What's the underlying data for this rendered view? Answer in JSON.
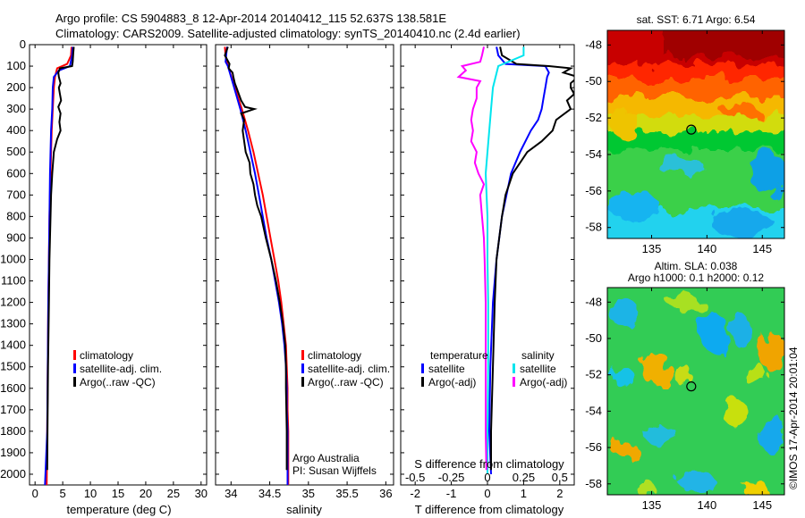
{
  "figure": {
    "title_line1": "Argo profile: CS 5904883_8 12-Apr-2014 20140412_115 52.637S 138.581E",
    "title_line2": "Climatology: CARS2009. Satellite-adjusted climatology: synTS_20140410.nc (2.4d earlier)",
    "side_stamp": "©IMOS 17-Apr-2014 20:01:04",
    "credit_line1": "Argo Australia",
    "credit_line2": "PI: Susan Wijffels"
  },
  "colors": {
    "climatology": "#ff0000",
    "satellite": "#0000ff",
    "argo": "#000000",
    "salinity_satellite": "#00e5ee",
    "salinity_argo": "#ff00ff"
  },
  "chart_data": [
    {
      "type": "line",
      "panel": "temperature",
      "xlabel": "temperature (deg C)",
      "ylabel": "",
      "xlim": [
        -1,
        31
      ],
      "ylim": [
        2050,
        0
      ],
      "xticks": [
        0,
        5,
        10,
        15,
        20,
        25,
        30
      ],
      "yticks": [
        0,
        100,
        200,
        300,
        400,
        500,
        600,
        700,
        800,
        900,
        1000,
        1100,
        1200,
        1300,
        1400,
        1500,
        1600,
        1700,
        1800,
        1900,
        2000
      ],
      "ytick_labels": [
        "0",
        "100",
        "200",
        "300",
        "400",
        "500",
        "600",
        "700",
        "800",
        "900",
        "1000",
        "1100",
        "1200",
        "1300",
        "1400",
        "1500",
        "1600",
        "1700",
        "1800",
        "1900",
        "2000"
      ],
      "legend": [
        "climatology",
        "satellite-adj. clim.",
        "Argo(..raw -QC)"
      ],
      "legend_position": "lower-center",
      "series": [
        {
          "name": "climatology",
          "color": "#ff0000",
          "y": [
            10,
            50,
            90,
            110,
            150,
            200,
            300,
            400,
            500,
            600,
            800,
            1000,
            1200,
            1500,
            1800,
            2050
          ],
          "x": [
            6.6,
            6.5,
            5.8,
            4.0,
            3.6,
            3.4,
            3.2,
            3.0,
            2.9,
            2.8,
            2.6,
            2.5,
            2.4,
            2.3,
            2.2,
            2.1
          ]
        },
        {
          "name": "satellite-adj. clim.",
          "color": "#0000ff",
          "y": [
            10,
            50,
            100,
            120,
            150,
            200,
            300,
            400,
            500,
            600,
            800,
            1000,
            1200,
            1500,
            1800,
            2050
          ],
          "x": [
            6.8,
            6.7,
            6.3,
            4.3,
            3.4,
            3.2,
            3.1,
            2.9,
            2.8,
            2.7,
            2.6,
            2.5,
            2.4,
            2.3,
            2.2,
            1.8
          ]
        },
        {
          "name": "Argo(..raw -QC)",
          "color": "#000000",
          "y": [
            10,
            40,
            80,
            100,
            110,
            130,
            150,
            180,
            200,
            230,
            260,
            290,
            320,
            360,
            400,
            440,
            500,
            600,
            700,
            800,
            1000,
            1200,
            1500,
            1800,
            1980
          ],
          "x": [
            7.0,
            6.9,
            6.8,
            6.7,
            4.5,
            4.2,
            4.3,
            4.6,
            4.3,
            4.5,
            4.7,
            4.2,
            4.6,
            4.4,
            4.6,
            4.0,
            3.4,
            3.1,
            2.9,
            2.8,
            2.6,
            2.5,
            2.35,
            2.25,
            2.2
          ]
        }
      ]
    },
    {
      "type": "line",
      "panel": "salinity",
      "xlabel": "salinity",
      "ylabel": "",
      "xlim": [
        33.8,
        36.1
      ],
      "ylim": [
        2050,
        0
      ],
      "xticks": [
        34,
        34.5,
        35,
        35.5,
        36
      ],
      "xtick_labels": [
        "34",
        "34.5",
        "35",
        "35.5",
        "36"
      ],
      "legend": [
        "climatology",
        "satellite-adj. clim.",
        "Argo(..raw -QC)"
      ],
      "legend_position": "lower-right",
      "series": [
        {
          "name": "climatology",
          "color": "#ff0000",
          "y": [
            10,
            50,
            100,
            200,
            300,
            400,
            500,
            600,
            700,
            800,
            900,
            1000,
            1100,
            1200,
            1300,
            1400,
            1500,
            1600,
            1700,
            1800,
            2050
          ],
          "x": [
            33.92,
            33.93,
            33.96,
            34.05,
            34.14,
            34.22,
            34.29,
            34.35,
            34.41,
            34.46,
            34.51,
            34.56,
            34.61,
            34.65,
            34.68,
            34.71,
            34.72,
            34.73,
            34.73,
            34.74,
            34.74
          ]
        },
        {
          "name": "satellite-adj. clim.",
          "color": "#0000ff",
          "y": [
            10,
            40,
            80,
            100,
            200,
            300,
            400,
            500,
            600,
            700,
            800,
            900,
            1000,
            1100,
            1200,
            1300,
            1400,
            1500,
            1600,
            1700,
            1800,
            2050
          ],
          "x": [
            33.95,
            33.94,
            33.93,
            33.96,
            34.04,
            34.12,
            34.19,
            34.25,
            34.31,
            34.36,
            34.41,
            34.46,
            34.52,
            34.57,
            34.62,
            34.66,
            34.69,
            34.71,
            34.72,
            34.72,
            34.73,
            34.73
          ]
        },
        {
          "name": "Argo(..raw -QC)",
          "color": "#000000",
          "y": [
            10,
            50,
            90,
            110,
            130,
            150,
            180,
            200,
            230,
            260,
            290,
            300,
            320,
            350,
            400,
            450,
            500,
            550,
            600,
            650,
            700,
            750,
            800,
            850,
            900,
            1000,
            1100,
            1200,
            1300,
            1400,
            1500,
            1600,
            1800,
            1980
          ],
          "x": [
            33.96,
            33.92,
            33.98,
            33.97,
            34.02,
            34.03,
            34.05,
            34.07,
            34.1,
            34.13,
            34.18,
            34.3,
            34.13,
            34.17,
            34.15,
            34.17,
            34.19,
            34.24,
            34.25,
            34.29,
            34.31,
            34.34,
            34.39,
            34.42,
            34.45,
            34.52,
            34.58,
            34.63,
            34.67,
            34.7,
            34.71,
            34.71,
            34.72,
            34.72
          ]
        }
      ]
    },
    {
      "type": "line",
      "panel": "difference",
      "xlabel": "T difference from climatology",
      "xlabel_top": "S difference from climatology",
      "xlim": [
        -2.4,
        2.4
      ],
      "ylim": [
        2050,
        0
      ],
      "xticks": [
        -2,
        -1,
        0,
        1,
        2
      ],
      "xtick_labels": [
        "-2",
        "-1",
        "0",
        "1",
        "2"
      ],
      "s_tick_labels": [
        "-0.5",
        "-0.25",
        "0",
        "0.25",
        "0.5"
      ],
      "legend_temperature_title": "temperature",
      "legend_salinity_title": "salinity",
      "legend": [
        "satellite",
        "Argo(-adj)",
        "satellite",
        "Argo(-adj)"
      ],
      "legend_position": "lower-center",
      "series": [
        {
          "name": "satellite",
          "color": "#0000ff",
          "y": [
            10,
            50,
            90,
            100,
            130,
            150,
            200,
            250,
            300,
            350,
            400,
            500,
            600,
            800,
            1000,
            1200,
            1500,
            1800,
            2000
          ],
          "x": [
            0.25,
            0.3,
            0.5,
            1.6,
            1.7,
            1.65,
            1.6,
            1.55,
            1.5,
            1.4,
            1.2,
            0.9,
            0.65,
            0.4,
            0.25,
            0.15,
            0.08,
            0.05,
            0.1
          ]
        },
        {
          "name": "Argo(-adj)",
          "color": "#000000",
          "y": [
            10,
            50,
            90,
            100,
            110,
            130,
            150,
            180,
            200,
            230,
            260,
            300,
            350,
            400,
            450,
            500,
            550,
            600,
            700,
            800,
            1000,
            1200,
            1500,
            1800,
            1980
          ],
          "x": [
            0.35,
            0.4,
            0.8,
            1.7,
            2.3,
            2.1,
            2.5,
            2.3,
            2.3,
            2.4,
            2.2,
            2.3,
            1.9,
            1.8,
            1.5,
            1.1,
            0.9,
            0.7,
            0.5,
            0.4,
            0.25,
            0.2,
            0.15,
            0.1,
            0.1
          ]
        },
        {
          "name": "satellite",
          "color": "#00e5ee",
          "y": [
            10,
            50,
            100,
            200,
            300,
            400,
            500,
            600,
            800,
            1000,
            1200,
            1500,
            1800,
            2000
          ],
          "x": [
            1.0,
            1.0,
            0.3,
            0.15,
            0.1,
            0.05,
            0.0,
            -0.05,
            0.0,
            0.0,
            0.02,
            0.02,
            0.0,
            0.0
          ]
        },
        {
          "name": "Argo(-adj)",
          "color": "#ff00ff",
          "y": [
            10,
            50,
            80,
            100,
            120,
            150,
            170,
            200,
            250,
            300,
            350,
            400,
            450,
            500,
            550,
            600,
            650,
            700,
            800,
            900,
            1000,
            1200,
            1500,
            1800,
            1980
          ],
          "x": [
            -0.1,
            -0.15,
            -0.2,
            -0.7,
            -0.6,
            -0.8,
            -0.2,
            -0.3,
            -0.3,
            -0.4,
            -0.45,
            -0.4,
            -0.45,
            -0.3,
            -0.35,
            -0.25,
            -0.1,
            -0.2,
            -0.15,
            -0.1,
            -0.08,
            -0.05,
            -0.05,
            -0.05,
            -0.03
          ]
        }
      ]
    },
    {
      "type": "heatmap",
      "panel": "sst_map",
      "title": "sat. SST: 6.71  Argo: 6.54",
      "xlim": [
        131,
        147
      ],
      "ylim": [
        -58.6,
        -47.2
      ],
      "xticks": [
        135,
        140,
        145
      ],
      "yticks": [
        -48,
        -50,
        -52,
        -54,
        -56,
        -58
      ],
      "marker": {
        "lon": 138.581,
        "lat": -52.637
      }
    },
    {
      "type": "heatmap",
      "panel": "sla_map",
      "title_line1": "Altim. SLA: 0.038",
      "title_line2": "Argo h1000: 0.1 h2000: 0.12",
      "xlim": [
        131,
        147
      ],
      "ylim": [
        -58.6,
        -47.2
      ],
      "xticks": [
        135,
        140,
        145
      ],
      "yticks": [
        -48,
        -50,
        -52,
        -54,
        -56,
        -58
      ],
      "marker": {
        "lon": 138.581,
        "lat": -52.637
      }
    }
  ]
}
